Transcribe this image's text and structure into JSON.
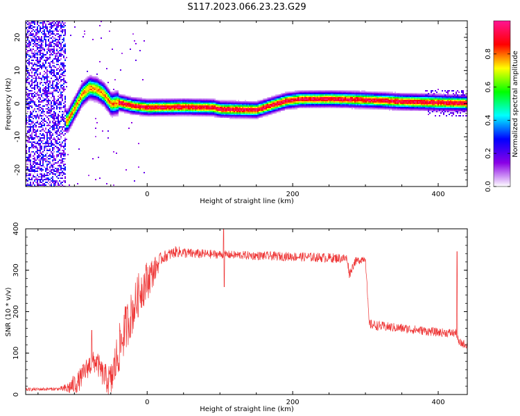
{
  "figure": {
    "title": "S117.2023.066.23.23.G29"
  },
  "chart_data": [
    {
      "type": "heatmap",
      "xlabel": "Height of straight line (km)",
      "ylabel": "Frequency (Hz)",
      "xlim": [
        -167,
        440
      ],
      "ylim": [
        -25,
        25
      ],
      "xticks": [
        0,
        200,
        400
      ],
      "yticks": [
        -20,
        -10,
        0,
        10,
        20
      ],
      "xtick_labels": [
        "0",
        "200",
        "400"
      ],
      "ytick_labels": [
        "-20",
        "-10",
        "0",
        "10",
        "20"
      ],
      "grid": false,
      "colorbar": {
        "label": "Normalized spectral amplitude",
        "range": [
          0,
          1
        ],
        "ticks": [
          0.0,
          0.2,
          0.4,
          0.6,
          0.8
        ],
        "tick_labels": [
          "0.0",
          "0.2",
          "0.4",
          "0.6",
          "0.8"
        ],
        "colormap": [
          "#ffffff",
          "#8a00e6",
          "#0000ff",
          "#00ffff",
          "#00ff00",
          "#ffff00",
          "#ff0000",
          "#ff1493"
        ]
      },
      "ridge": [
        [
          -110,
          -5
        ],
        [
          -100,
          -1
        ],
        [
          -90,
          3
        ],
        [
          -80,
          5
        ],
        [
          -70,
          4.5
        ],
        [
          -60,
          3
        ],
        [
          -55,
          1.5
        ],
        [
          -50,
          0
        ],
        [
          -40,
          0.5
        ],
        [
          -30,
          0
        ],
        [
          -20,
          -0.5
        ],
        [
          0,
          -1
        ],
        [
          50,
          -0.8
        ],
        [
          90,
          -1
        ],
        [
          100,
          -1.5
        ],
        [
          150,
          -1.7
        ],
        [
          160,
          -1
        ],
        [
          175,
          0
        ],
        [
          190,
          1
        ],
        [
          210,
          1.5
        ],
        [
          250,
          1.6
        ],
        [
          300,
          1.3
        ],
        [
          350,
          0.8
        ],
        [
          400,
          0.5
        ],
        [
          440,
          0.3
        ]
      ]
    },
    {
      "type": "line",
      "xlabel": "Height of straight line (km)",
      "ylabel": "SNR (10 * v/v)",
      "xlim": [
        -167,
        440
      ],
      "ylim": [
        0,
        400
      ],
      "xticks": [
        0,
        200,
        400
      ],
      "yticks": [
        0,
        100,
        200,
        300,
        400
      ],
      "xtick_labels": [
        "0",
        "200",
        "400"
      ],
      "ytick_labels": [
        "0",
        "100",
        "200",
        "300",
        "400"
      ],
      "grid": false,
      "color": "#ee3333",
      "series_profile": [
        [
          -167,
          12
        ],
        [
          -110,
          14
        ],
        [
          -95,
          30
        ],
        [
          -80,
          70
        ],
        [
          -70,
          80
        ],
        [
          -60,
          45
        ],
        [
          -50,
          30
        ],
        [
          -40,
          100
        ],
        [
          -30,
          160
        ],
        [
          -20,
          200
        ],
        [
          -10,
          250
        ],
        [
          10,
          300
        ],
        [
          20,
          330
        ],
        [
          40,
          345
        ],
        [
          60,
          340
        ],
        [
          100,
          338
        ],
        [
          150,
          335
        ],
        [
          200,
          333
        ],
        [
          250,
          330
        ],
        [
          275,
          328
        ],
        [
          278,
          290
        ],
        [
          285,
          320
        ],
        [
          300,
          330
        ],
        [
          305,
          170
        ],
        [
          320,
          165
        ],
        [
          360,
          158
        ],
        [
          400,
          150
        ],
        [
          425,
          148
        ],
        [
          428,
          125
        ],
        [
          440,
          120
        ]
      ],
      "noise": [
        [
          -167,
          4
        ],
        [
          -120,
          4
        ],
        [
          -100,
          25
        ],
        [
          -60,
          30
        ],
        [
          -40,
          60
        ],
        [
          0,
          50
        ],
        [
          20,
          15
        ],
        [
          100,
          10
        ],
        [
          270,
          12
        ],
        [
          290,
          10
        ],
        [
          300,
          10
        ],
        [
          306,
          12
        ],
        [
          440,
          10
        ]
      ],
      "spikes": [
        [
          105,
          400
        ],
        [
          106,
          260
        ],
        [
          426,
          345
        ],
        [
          -76,
          155
        ]
      ]
    }
  ]
}
